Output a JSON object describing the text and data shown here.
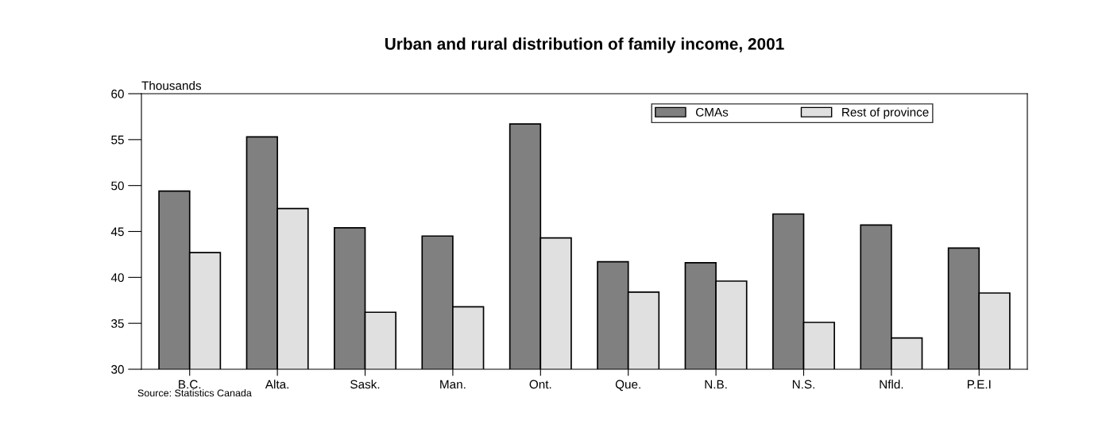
{
  "chart_data": {
    "type": "bar",
    "title": "Urban and rural distribution of family income, 2001",
    "ylabel": "Thousands",
    "categories": [
      "B.C.",
      "Alta.",
      "Sask.",
      "Man.",
      "Ont.",
      "Que.",
      "N.B.",
      "N.S.",
      "Nfld.",
      "P.E.I"
    ],
    "series": [
      {
        "name": "CMAs",
        "color": "#808080",
        "values": [
          49.4,
          55.3,
          45.4,
          44.5,
          56.7,
          41.7,
          41.6,
          46.9,
          45.7,
          43.2
        ]
      },
      {
        "name": "Rest of province",
        "color": "#e0e0e0",
        "values": [
          42.7,
          47.5,
          36.2,
          36.8,
          44.3,
          38.4,
          39.6,
          35.1,
          33.4,
          38.3
        ]
      }
    ],
    "ylim": [
      30,
      60
    ],
    "yticks": [
      30,
      35,
      40,
      45,
      50,
      55,
      60
    ],
    "grid": false,
    "legend": "top right",
    "annotations": [
      "Source: Statistics Canada"
    ]
  }
}
